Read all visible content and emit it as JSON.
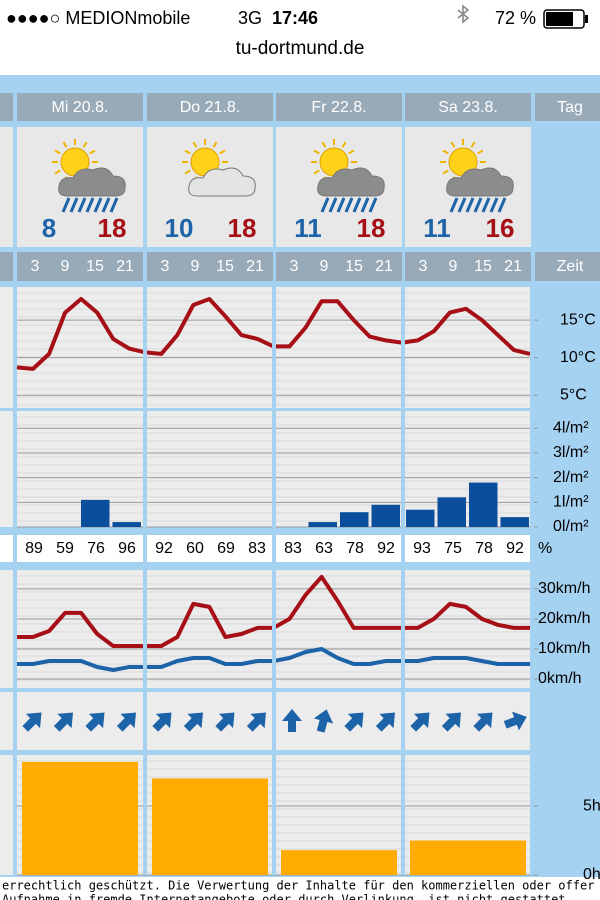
{
  "status_bar": {
    "carrier": "●●●●○ MEDIONmobile",
    "network": "3G",
    "time": "17:46",
    "battery": "72 %"
  },
  "url": "tu-dortmund.de",
  "row_labels": {
    "day": "Tag",
    "time": "Zeit",
    "humidity_unit": "%"
  },
  "days": [
    {
      "label": "Mi 20.8.",
      "icon": "sun-cloud-rain",
      "temp_min": 8,
      "temp_max": 18,
      "hours": [
        "3",
        "9",
        "15",
        "21"
      ],
      "humidity": [
        89,
        59,
        76,
        96
      ],
      "wind_direction": [
        45,
        45,
        45,
        45
      ]
    },
    {
      "label": "Do 21.8.",
      "icon": "sun-cloud",
      "temp_min": 10,
      "temp_max": 18,
      "hours": [
        "3",
        "9",
        "15",
        "21"
      ],
      "humidity": [
        92,
        60,
        69,
        83
      ],
      "wind_direction": [
        45,
        45,
        45,
        45
      ]
    },
    {
      "label": "Fr 22.8.",
      "icon": "sun-cloud-rain",
      "temp_min": 11,
      "temp_max": 18,
      "hours": [
        "3",
        "9",
        "15",
        "21"
      ],
      "humidity": [
        83,
        63,
        78,
        92
      ],
      "wind_direction": [
        0,
        15,
        45,
        45
      ]
    },
    {
      "label": "Sa 23.8.",
      "icon": "sun-cloud-rain",
      "temp_min": 11,
      "temp_max": 16,
      "hours": [
        "3",
        "9",
        "15",
        "21"
      ],
      "humidity": [
        93,
        75,
        78,
        92
      ],
      "wind_direction": [
        45,
        45,
        45,
        70
      ]
    }
  ],
  "temperature_chart": {
    "type": "line",
    "color": "#a50f15",
    "x": [
      0,
      3,
      6,
      9,
      12,
      15,
      18,
      21,
      24,
      27,
      30,
      33,
      36,
      39,
      42,
      45,
      48,
      51,
      54,
      57,
      60,
      63,
      66,
      69,
      72,
      75,
      78,
      81,
      84,
      87,
      90,
      93,
      96
    ],
    "values": [
      8.7,
      8.5,
      10.5,
      16,
      17.8,
      16,
      12.5,
      11.2,
      10.7,
      10.5,
      13,
      17,
      17.8,
      15.5,
      13,
      12.5,
      11.5,
      11.5,
      14,
      17.5,
      17.5,
      15,
      12.8,
      12.3,
      12,
      12.3,
      13.5,
      16,
      16.5,
      15,
      13,
      11,
      10.5
    ],
    "xlim": [
      0,
      96
    ],
    "ylim": [
      3.3,
      19.4
    ],
    "yticks": [
      {
        "value": 15,
        "label": "15°C"
      },
      {
        "value": 10,
        "label": "10°C"
      },
      {
        "value": 5,
        "label": "5°C"
      }
    ]
  },
  "precipitation_chart": {
    "type": "bar",
    "color": "#0b4f9c",
    "values": [
      0,
      0,
      1.1,
      0.2,
      0,
      0,
      0,
      0,
      0,
      0.2,
      0.6,
      0.9,
      0.7,
      1.2,
      1.8,
      0.4
    ],
    "ylim": [
      0,
      4.7
    ],
    "yticks": [
      {
        "value": 4,
        "label": "4l/m²"
      },
      {
        "value": 3,
        "label": "3l/m²"
      },
      {
        "value": 2,
        "label": "2l/m²"
      },
      {
        "value": 1,
        "label": "1l/m²"
      },
      {
        "value": 0,
        "label": "0l/m²"
      }
    ]
  },
  "wind_chart": {
    "type": "line",
    "x": [
      0,
      3,
      6,
      9,
      12,
      15,
      18,
      21,
      24,
      27,
      30,
      33,
      36,
      39,
      42,
      45,
      48,
      51,
      54,
      57,
      60,
      63,
      66,
      69,
      72,
      75,
      78,
      81,
      84,
      87,
      90,
      93,
      96
    ],
    "series": [
      {
        "color": "#a50f15",
        "values": [
          14,
          14,
          16,
          22,
          22,
          15,
          11,
          11,
          11,
          11,
          14,
          25,
          24,
          14,
          15,
          17,
          17,
          20,
          28,
          34,
          26,
          17,
          17,
          17,
          17,
          17,
          20,
          25,
          24,
          20,
          18,
          17,
          17
        ]
      },
      {
        "color": "#1d63a8",
        "values": [
          5,
          5,
          6,
          6,
          6,
          4,
          3,
          4,
          4,
          4,
          6,
          7,
          7,
          5,
          5,
          6,
          6,
          7,
          9,
          10,
          7,
          5,
          5,
          6,
          6,
          6,
          7,
          7,
          7,
          6,
          5,
          5,
          5
        ]
      }
    ],
    "xlim": [
      0,
      96
    ],
    "ylim": [
      -3,
      36.3
    ],
    "yticks": [
      {
        "value": 30,
        "label": "30km/h"
      },
      {
        "value": 20,
        "label": "20km/h"
      },
      {
        "value": 10,
        "label": "10km/h"
      },
      {
        "value": 0,
        "label": "0km/h"
      }
    ]
  },
  "sunshine_chart": {
    "type": "bar",
    "color": "#ffab00",
    "values": [
      8.2,
      7.0,
      1.8,
      2.5
    ],
    "ylim": [
      0,
      8.7
    ],
    "yticks": [
      {
        "value": 5,
        "label": "5h"
      },
      {
        "value": 0,
        "label": "0h"
      }
    ]
  },
  "footer": [
    "errechtlich geschützt. Die Verwertung der Inhalte für den kommerziellen oder offer",
    "Aufnahme in fremde Internetangebote oder durch Verlinkung, ist nicht gestattet."
  ]
}
